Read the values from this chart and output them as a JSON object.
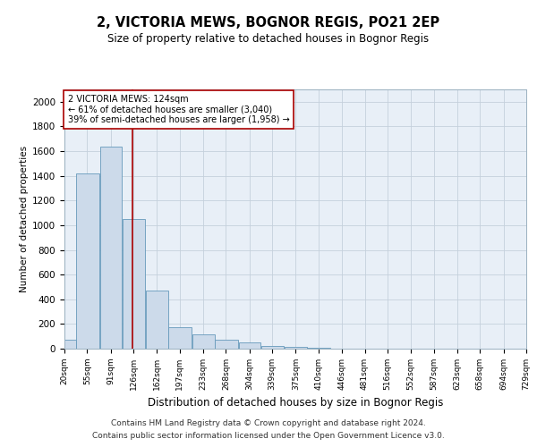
{
  "title": "2, VICTORIA MEWS, BOGNOR REGIS, PO21 2EP",
  "subtitle": "Size of property relative to detached houses in Bognor Regis",
  "xlabel": "Distribution of detached houses by size in Bognor Regis",
  "ylabel": "Number of detached properties",
  "bar_color": "#ccdaea",
  "bar_edge_color": "#6699bb",
  "bg_color": "#e8eff7",
  "grid_color": "#c5d0dc",
  "red_color": "#aa0000",
  "annotation_text_line1": "2 VICTORIA MEWS: 124sqm",
  "annotation_text_line2": "← 61% of detached houses are smaller (3,040)",
  "annotation_text_line3": "39% of semi-detached houses are larger (1,958) →",
  "red_line_x": 124,
  "footer_line1": "Contains HM Land Registry data © Crown copyright and database right 2024.",
  "footer_line2": "Contains public sector information licensed under the Open Government Licence v3.0.",
  "bins": [
    20,
    55,
    91,
    126,
    162,
    197,
    233,
    268,
    304,
    339,
    375,
    410,
    446,
    481,
    516,
    552,
    587,
    623,
    658,
    694,
    729
  ],
  "counts": [
    75,
    1420,
    1640,
    1050,
    470,
    175,
    115,
    70,
    50,
    25,
    15,
    5,
    0,
    0,
    0,
    0,
    0,
    0,
    0,
    0
  ],
  "ylim": [
    0,
    2100
  ],
  "yticks": [
    0,
    200,
    400,
    600,
    800,
    1000,
    1200,
    1400,
    1600,
    1800,
    2000
  ],
  "tick_labels": [
    "20sqm",
    "55sqm",
    "91sqm",
    "126sqm",
    "162sqm",
    "197sqm",
    "233sqm",
    "268sqm",
    "304sqm",
    "339sqm",
    "375sqm",
    "410sqm",
    "446sqm",
    "481sqm",
    "516sqm",
    "552sqm",
    "587sqm",
    "623sqm",
    "658sqm",
    "694sqm",
    "729sqm"
  ]
}
